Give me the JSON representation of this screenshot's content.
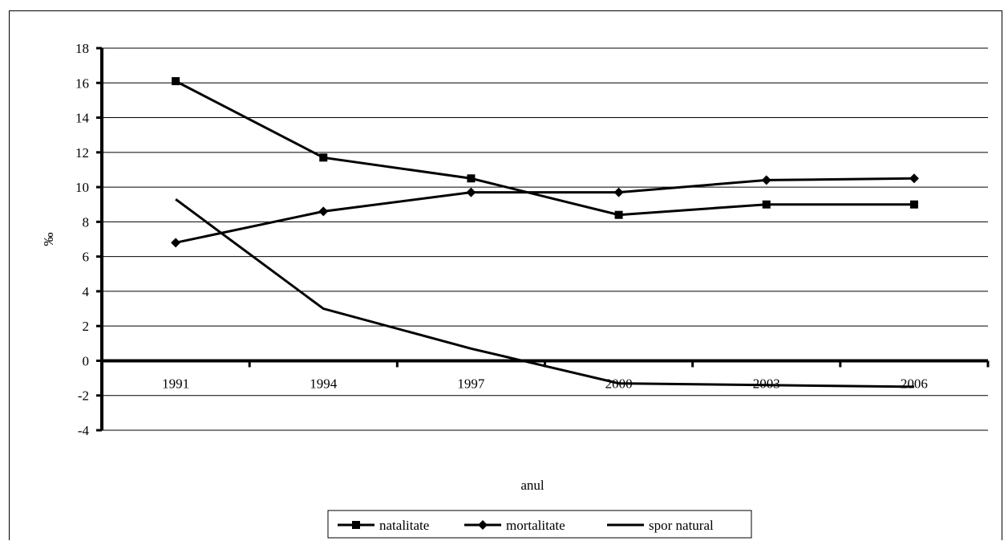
{
  "chart_data": {
    "type": "line",
    "categories": [
      "1991",
      "1994",
      "1997",
      "2000",
      "2003",
      "2006"
    ],
    "series": [
      {
        "name": "natalitate",
        "marker": "square",
        "values": [
          16.1,
          11.7,
          10.5,
          8.4,
          9.0,
          9.0
        ]
      },
      {
        "name": "mortalitate",
        "marker": "diamond",
        "values": [
          6.8,
          8.6,
          9.7,
          9.7,
          10.4,
          10.5
        ]
      },
      {
        "name": "spor natural",
        "marker": "none",
        "values": [
          9.3,
          3.0,
          0.7,
          -1.3,
          -1.4,
          -1.5
        ]
      }
    ],
    "ylim": [
      -4,
      18
    ],
    "ytick_step": 2,
    "yticks": [
      "-4",
      "-2",
      "0",
      "2",
      "4",
      "6",
      "8",
      "10",
      "12",
      "14",
      "16",
      "18"
    ],
    "xlabel": "anul",
    "ylabel": "‰",
    "grid": true,
    "legend_position": "bottom",
    "line_color": "#000000"
  }
}
